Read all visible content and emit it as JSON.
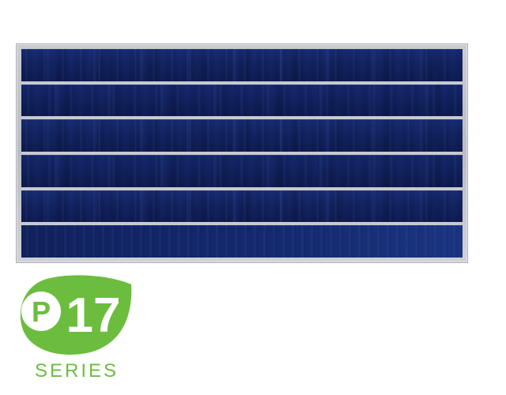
{
  "logo": {
    "letter": "P",
    "number": "17",
    "series": "SERIES",
    "accent_color": "#6cbd3e"
  },
  "panel": {
    "frame_color": "#c0c3c8",
    "cell_color": "#10215c",
    "rows": 6
  }
}
